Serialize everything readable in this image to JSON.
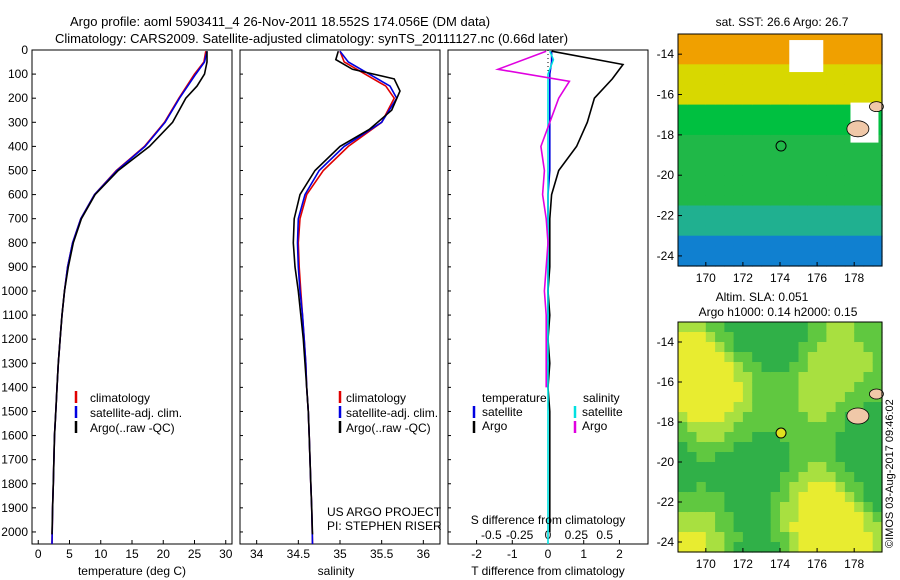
{
  "header": {
    "line1": "Argo profile: aoml 5903411_4 26-Nov-2011 18.552S 174.056E (DM data)",
    "line2": "Climatology: CARS2009. Satellite-adjusted climatology: synTS_20111127.nc (0.66d later)"
  },
  "credits": {
    "project": "US ARGO PROJECT",
    "pi": "PI: STEPHEN RISER",
    "imos": "©IMOS 03-Aug-2017 09:46:02"
  },
  "colors": {
    "climatology": "#e00000",
    "satellite": "#0000e0",
    "argo": "#000000",
    "sal_satellite": "#00e0e0",
    "sal_argo": "#e000e0"
  },
  "chart_data": [
    {
      "type": "line",
      "xlabel": "temperature (deg C)",
      "ylim": [
        2050,
        0
      ],
      "xlim": [
        -1,
        31
      ],
      "xticks": [
        0,
        5,
        10,
        15,
        20,
        25,
        30
      ],
      "yticks": [
        0,
        100,
        200,
        300,
        400,
        500,
        600,
        700,
        800,
        900,
        1000,
        1100,
        1200,
        1300,
        1400,
        1500,
        1600,
        1700,
        1800,
        1900,
        2000
      ],
      "legend": [
        "climatology",
        "satellite-adj. clim.",
        "Argo(..raw -QC)"
      ],
      "series": [
        {
          "name": "climatology",
          "color": "#e00000",
          "points": [
            [
              26.8,
              5
            ],
            [
              26.5,
              50
            ],
            [
              25,
              100
            ],
            [
              22.5,
              200
            ],
            [
              20.2,
              300
            ],
            [
              17,
              400
            ],
            [
              12.5,
              500
            ],
            [
              9,
              600
            ],
            [
              6.8,
              700
            ],
            [
              5.5,
              800
            ],
            [
              4.7,
              900
            ],
            [
              4.2,
              1000
            ],
            [
              3.8,
              1100
            ],
            [
              3.5,
              1200
            ],
            [
              3.2,
              1300
            ],
            [
              3.0,
              1400
            ],
            [
              2.8,
              1500
            ],
            [
              2.6,
              1600
            ],
            [
              2.5,
              1700
            ],
            [
              2.4,
              1800
            ],
            [
              2.3,
              1900
            ],
            [
              2.2,
              2050
            ]
          ]
        },
        {
          "name": "satellite-adj. clim.",
          "color": "#0000e0",
          "points": [
            [
              27,
              5
            ],
            [
              26.6,
              50
            ],
            [
              25.2,
              100
            ],
            [
              22.6,
              200
            ],
            [
              20.3,
              300
            ],
            [
              17.1,
              400
            ],
            [
              12.6,
              500
            ],
            [
              9,
              600
            ],
            [
              6.8,
              700
            ],
            [
              5.5,
              800
            ],
            [
              4.7,
              900
            ],
            [
              4.2,
              1000
            ],
            [
              3.8,
              1100
            ],
            [
              3.5,
              1200
            ],
            [
              3.2,
              1300
            ],
            [
              3.0,
              1400
            ],
            [
              2.8,
              1500
            ],
            [
              2.6,
              1600
            ],
            [
              2.5,
              1700
            ],
            [
              2.4,
              1800
            ],
            [
              2.3,
              1900
            ],
            [
              2.2,
              2050
            ]
          ]
        },
        {
          "name": "Argo(..raw -QC)",
          "color": "#000000",
          "points": [
            [
              27,
              5
            ],
            [
              27,
              50
            ],
            [
              26.6,
              100
            ],
            [
              25.4,
              150
            ],
            [
              23.6,
              200
            ],
            [
              21.5,
              300
            ],
            [
              17.8,
              400
            ],
            [
              12.8,
              500
            ],
            [
              9.1,
              600
            ],
            [
              6.9,
              700
            ],
            [
              5.6,
              800
            ],
            [
              4.8,
              900
            ],
            [
              4.2,
              1000
            ],
            [
              3.8,
              1100
            ],
            [
              3.5,
              1200
            ],
            [
              3.2,
              1300
            ],
            [
              3.0,
              1400
            ],
            [
              2.8,
              1500
            ],
            [
              2.6,
              1600
            ],
            [
              2.5,
              1700
            ],
            [
              2.4,
              1800
            ],
            [
              2.3,
              1900
            ],
            [
              2.2,
              2010
            ]
          ]
        }
      ]
    },
    {
      "type": "line",
      "xlabel": "salinity",
      "ylim": [
        2050,
        0
      ],
      "xlim": [
        33.8,
        36.2
      ],
      "xticks": [
        34,
        34.5,
        35,
        35.5,
        36
      ],
      "legend": [
        "climatology",
        "satellite-adj. clim.",
        "Argo(..raw -QC)"
      ],
      "series": [
        {
          "name": "climatology",
          "color": "#e00000",
          "points": [
            [
              35,
              5
            ],
            [
              35.05,
              50
            ],
            [
              35.3,
              100
            ],
            [
              35.55,
              150
            ],
            [
              35.65,
              200
            ],
            [
              35.5,
              300
            ],
            [
              35.1,
              400
            ],
            [
              34.8,
              500
            ],
            [
              34.6,
              600
            ],
            [
              34.52,
              700
            ],
            [
              34.5,
              800
            ],
            [
              34.51,
              900
            ],
            [
              34.53,
              1000
            ],
            [
              34.55,
              1100
            ],
            [
              34.57,
              1200
            ],
            [
              34.59,
              1300
            ],
            [
              34.6,
              1400
            ],
            [
              34.62,
              1500
            ],
            [
              34.63,
              1600
            ],
            [
              34.64,
              1700
            ],
            [
              34.65,
              1800
            ],
            [
              34.66,
              1900
            ],
            [
              34.67,
              2050
            ]
          ]
        },
        {
          "name": "satellite-adj. clim.",
          "color": "#0000e0",
          "points": [
            [
              35,
              5
            ],
            [
              35.1,
              50
            ],
            [
              35.35,
              100
            ],
            [
              35.6,
              150
            ],
            [
              35.68,
              200
            ],
            [
              35.5,
              300
            ],
            [
              35.05,
              400
            ],
            [
              34.75,
              500
            ],
            [
              34.58,
              600
            ],
            [
              34.5,
              700
            ],
            [
              34.49,
              800
            ],
            [
              34.5,
              900
            ],
            [
              34.52,
              1000
            ],
            [
              34.55,
              1100
            ],
            [
              34.57,
              1200
            ],
            [
              34.59,
              1300
            ],
            [
              34.6,
              1400
            ],
            [
              34.62,
              1500
            ],
            [
              34.63,
              1600
            ],
            [
              34.64,
              1700
            ],
            [
              34.65,
              1800
            ],
            [
              34.66,
              1900
            ],
            [
              34.67,
              2050
            ]
          ]
        },
        {
          "name": "Argo(..raw -QC)",
          "color": "#000000",
          "points": [
            [
              34.98,
              5
            ],
            [
              34.95,
              40
            ],
            [
              35.15,
              80
            ],
            [
              35.65,
              120
            ],
            [
              35.72,
              170
            ],
            [
              35.62,
              250
            ],
            [
              35.35,
              330
            ],
            [
              35.0,
              400
            ],
            [
              34.7,
              500
            ],
            [
              34.52,
              600
            ],
            [
              34.45,
              700
            ],
            [
              34.44,
              800
            ],
            [
              34.46,
              900
            ],
            [
              34.5,
              1000
            ],
            [
              34.53,
              1100
            ],
            [
              34.56,
              1200
            ],
            [
              34.58,
              1300
            ],
            [
              34.6,
              1400
            ],
            [
              34.62,
              1500
            ],
            [
              34.63,
              1600
            ],
            [
              34.64,
              1700
            ],
            [
              34.65,
              1800
            ],
            [
              34.66,
              1900
            ],
            [
              34.67,
              2010
            ]
          ]
        }
      ]
    },
    {
      "type": "line",
      "xlabel": "T difference from climatology",
      "secondary_xlabel": "S difference from climatology",
      "ylim": [
        2050,
        0
      ],
      "xlim": [
        -2.8,
        2.8
      ],
      "xticks": [
        -2,
        -1,
        0,
        1,
        2
      ],
      "secondary_xticks": [
        -0.5,
        -0.25,
        0,
        0.25,
        0.5
      ],
      "legend_titles": [
        "temperature",
        "salinity"
      ],
      "legend": [
        "satellite",
        "Argo",
        "satellite",
        "Argo"
      ],
      "series": [
        {
          "name": "temperature satellite",
          "color": "#0000e0",
          "points": [
            [
              0.1,
              5
            ],
            [
              0.1,
              50
            ],
            [
              0.05,
              100
            ],
            [
              0.05,
              200
            ],
            [
              0.05,
              300
            ],
            [
              0.05,
              400
            ],
            [
              0.05,
              500
            ],
            [
              0,
              600
            ],
            [
              0,
              800
            ],
            [
              0,
              1000
            ],
            [
              0,
              1300
            ],
            [
              0,
              1400
            ]
          ]
        },
        {
          "name": "temperature Argo",
          "color": "#000000",
          "points": [
            [
              0.1,
              5
            ],
            [
              2.1,
              60
            ],
            [
              1.8,
              120
            ],
            [
              1.3,
              200
            ],
            [
              1.1,
              300
            ],
            [
              0.8,
              400
            ],
            [
              0.3,
              500
            ],
            [
              0.1,
              600
            ],
            [
              0.05,
              700
            ],
            [
              0.05,
              800
            ],
            [
              0.05,
              900
            ],
            [
              0,
              1000
            ],
            [
              0.05,
              1100
            ],
            [
              0,
              1200
            ],
            [
              0.05,
              1300
            ],
            [
              0,
              1400
            ],
            [
              0.05,
              1500
            ],
            [
              0.05,
              1600
            ],
            [
              0.05,
              1700
            ],
            [
              0.05,
              1800
            ],
            [
              0.05,
              1900
            ],
            [
              0.05,
              2000
            ]
          ]
        },
        {
          "name": "salinity satellite",
          "color": "#00e0e0",
          "points": [
            [
              0.05,
              5
            ],
            [
              0.15,
              40
            ],
            [
              0,
              100
            ],
            [
              0,
              200
            ],
            [
              0,
              300
            ],
            [
              0,
              500
            ],
            [
              0,
              800
            ],
            [
              0,
              1200
            ],
            [
              0,
              1600
            ],
            [
              0,
              2050
            ]
          ]
        },
        {
          "name": "salinity Argo",
          "color": "#e000e0",
          "points": [
            [
              -0.05,
              5
            ],
            [
              -1.4,
              80
            ],
            [
              0.6,
              130
            ],
            [
              0.3,
              200
            ],
            [
              0.05,
              300
            ],
            [
              -0.2,
              400
            ],
            [
              -0.1,
              500
            ],
            [
              -0.15,
              600
            ],
            [
              -0.05,
              700
            ],
            [
              0,
              800
            ],
            [
              -0.05,
              900
            ],
            [
              -0.1,
              1000
            ],
            [
              -0.05,
              1100
            ],
            [
              -0.05,
              1200
            ],
            [
              -0.05,
              1300
            ],
            [
              -0.05,
              1400
            ]
          ]
        }
      ]
    },
    {
      "type": "heatmap",
      "title": "sat. SST: 26.6 Argo: 26.7",
      "xlim": [
        168.5,
        179.5
      ],
      "ylim": [
        -24.5,
        -13
      ],
      "xticks": [
        170,
        172,
        174,
        176,
        178
      ],
      "yticks": [
        -14,
        -16,
        -18,
        -20,
        -22,
        -24
      ],
      "marker": {
        "lon": 174.056,
        "lat": -18.552
      }
    },
    {
      "type": "heatmap",
      "title": "Altim. SLA: 0.051",
      "subtitle": "Argo h1000: 0.14 h2000: 0.15",
      "xlim": [
        168.5,
        179.5
      ],
      "ylim": [
        -24.5,
        -13
      ],
      "xticks": [
        170,
        172,
        174,
        176,
        178
      ],
      "yticks": [
        -14,
        -16,
        -18,
        -20,
        -22,
        -24
      ],
      "marker": {
        "lon": 174.056,
        "lat": -18.552
      }
    }
  ]
}
